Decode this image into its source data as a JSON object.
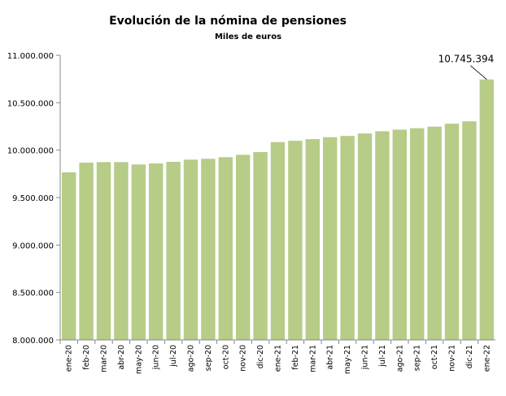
{
  "chart_data": {
    "type": "bar",
    "title": "Evolución de la nómina de pensiones",
    "subtitle": "Miles de euros",
    "xlabel": "",
    "ylabel": "",
    "ylim": [
      8000000,
      11000000
    ],
    "yticks": [
      8000000,
      8500000,
      9000000,
      9500000,
      10000000,
      10500000,
      11000000
    ],
    "ytick_labels": [
      "8.000.000",
      "8.500.000",
      "9.000.000",
      "9.500.000",
      "10.000.000",
      "10.500.000",
      "11.000.000"
    ],
    "grid": false,
    "legend": "none",
    "bar_color": "#b6cc87",
    "categories": [
      "ene-20",
      "feb-20",
      "mar-20",
      "abr-20",
      "may-20",
      "jun-20",
      "jul-20",
      "ago-20",
      "sep-20",
      "oct-20",
      "nov-20",
      "dic-20",
      "ene-21",
      "feb-21",
      "mar-21",
      "abr-21",
      "may-21",
      "jun-21",
      "jul-21",
      "ago-21",
      "sep-21",
      "oct-21",
      "nov-21",
      "dic-21",
      "ene-22"
    ],
    "values": [
      9766000,
      9868000,
      9874000,
      9874000,
      9849000,
      9860000,
      9877000,
      9900000,
      9909000,
      9926000,
      9951000,
      9980000,
      10085000,
      10099000,
      10116000,
      10137000,
      10150000,
      10176000,
      10199000,
      10216000,
      10231000,
      10248000,
      10279000,
      10304000,
      10745394
    ],
    "annotations": [
      {
        "category": "ene-22",
        "text": "10.745.394"
      }
    ]
  }
}
